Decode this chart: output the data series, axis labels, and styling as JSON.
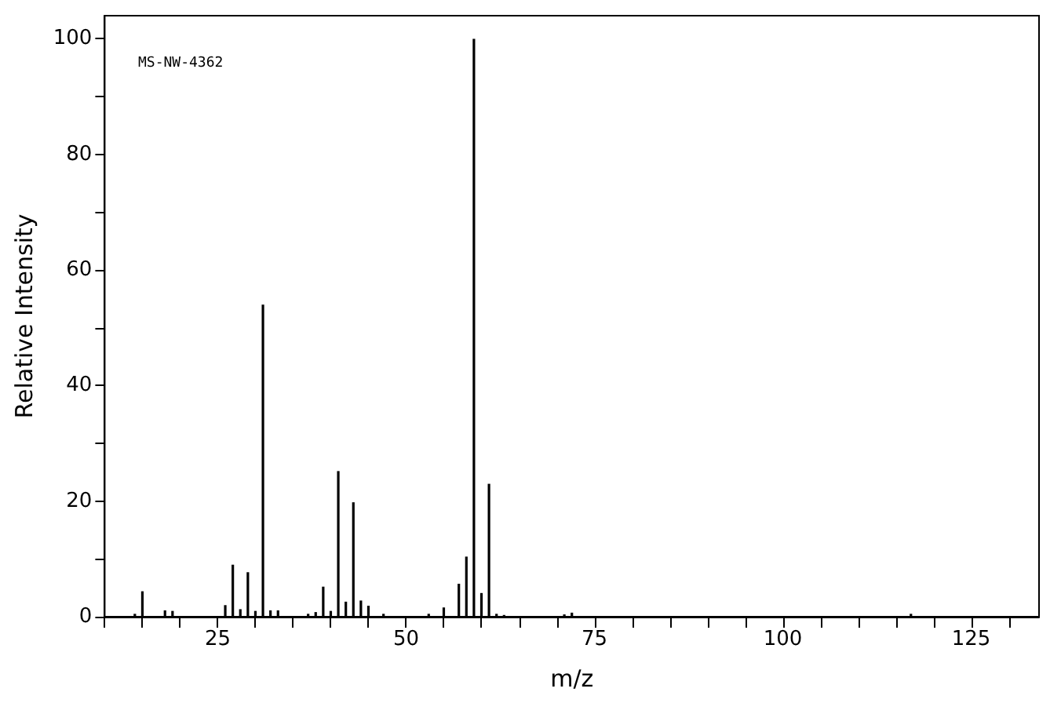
{
  "chart_data": {
    "type": "bar",
    "xlabel": "m/z",
    "ylabel": "Relative Intensity",
    "annotations": [
      "MS-NW-4362"
    ],
    "x": [
      14,
      15,
      18,
      19,
      26,
      27,
      28,
      29,
      30,
      31,
      32,
      33,
      37,
      38,
      39,
      40,
      41,
      42,
      43,
      44,
      45,
      47,
      53,
      55,
      57,
      58,
      59,
      60,
      61,
      62,
      63,
      71,
      72,
      117
    ],
    "values": [
      0.5,
      4.4,
      1.1,
      1,
      2,
      9,
      1.3,
      7.7,
      1,
      54,
      1.1,
      1.1,
      0.5,
      0.8,
      5.2,
      1,
      25.2,
      2.6,
      19.8,
      2.8,
      1.9,
      0.5,
      0.5,
      1.6,
      5.7,
      10.4,
      100,
      4.1,
      23,
      0.5,
      0.3,
      0.4,
      0.7,
      0.5
    ],
    "color": "#000000",
    "xlim": [
      10,
      134
    ],
    "xticks": [
      {
        "value": 10,
        "label": null
      },
      {
        "value": 15,
        "label": null
      },
      {
        "value": 20,
        "label": null
      },
      25,
      {
        "value": 30,
        "label": null
      },
      {
        "value": 35,
        "label": null
      },
      {
        "value": 40,
        "label": null
      },
      {
        "value": 45,
        "label": null
      },
      50,
      {
        "value": 55,
        "label": null
      },
      {
        "value": 60,
        "label": null
      },
      {
        "value": 65,
        "label": null
      },
      {
        "value": 70,
        "label": null
      },
      75,
      {
        "value": 80,
        "label": null
      },
      {
        "value": 85,
        "label": null
      },
      {
        "value": 90,
        "label": null
      },
      {
        "value": 95,
        "label": null
      },
      100,
      {
        "value": 105,
        "label": null
      },
      {
        "value": 110,
        "label": null
      },
      {
        "value": 115,
        "label": null
      },
      {
        "value": 120,
        "label": null
      },
      125,
      {
        "value": 130,
        "label": null
      }
    ],
    "ylim": [
      0,
      104
    ],
    "yticks": [
      0,
      {
        "value": 10,
        "label": null
      },
      20,
      {
        "value": 30,
        "label": null
      },
      40,
      {
        "value": 50,
        "label": null
      },
      60,
      {
        "value": 70,
        "label": null
      },
      80,
      {
        "value": 90,
        "label": null
      },
      100
    ],
    "grid": false
  }
}
